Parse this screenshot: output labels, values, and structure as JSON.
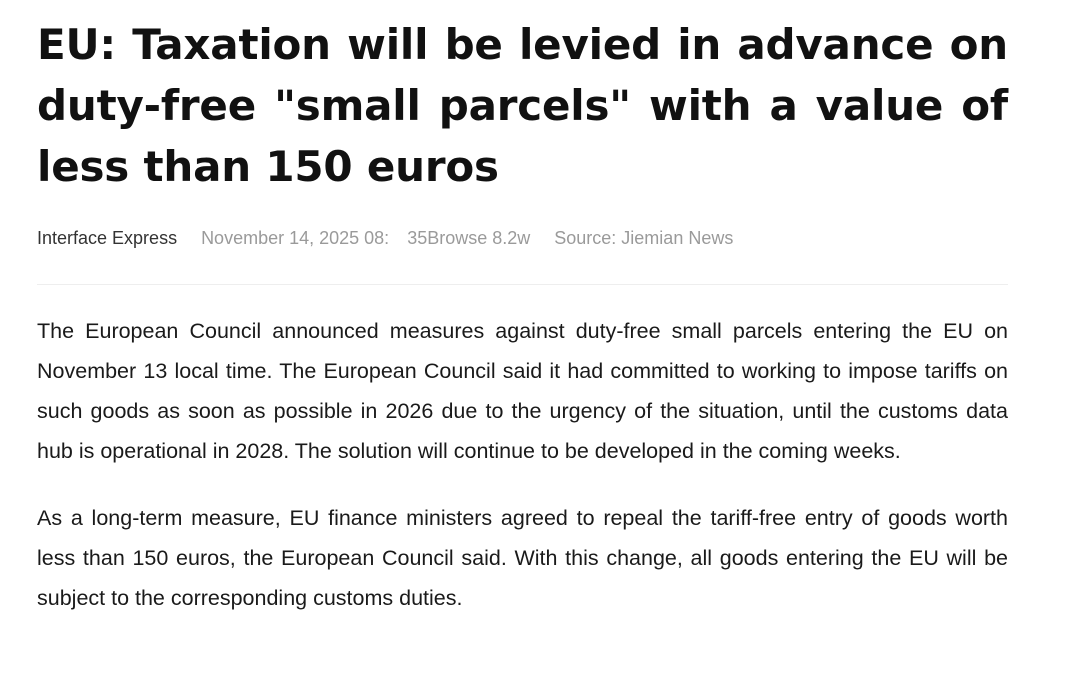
{
  "article": {
    "title": "EU: Taxation will be levied in advance on duty-free \"small parcels\" with a value of less than 150 euros",
    "meta": {
      "author": "Interface Express",
      "date": "November 14, 2025 08:",
      "views": "35Browse 8.2w",
      "source": "Source: Jiemian News"
    },
    "paragraphs": [
      "The European Council announced measures against duty-free small parcels entering the EU on November 13 local time. The European Council said it had committed to working to impose tariffs on such goods as soon as possible in 2026 due to the urgency of the situation, until the customs data hub is operational in 2028. The solution will continue to be developed in the coming weeks.",
      "As a long-term measure, EU finance ministers agreed to repeal the tariff-free entry of goods worth less than 150 euros, the European Council said. With this change, all goods entering the EU will be subject to the corresponding customs duties."
    ]
  }
}
